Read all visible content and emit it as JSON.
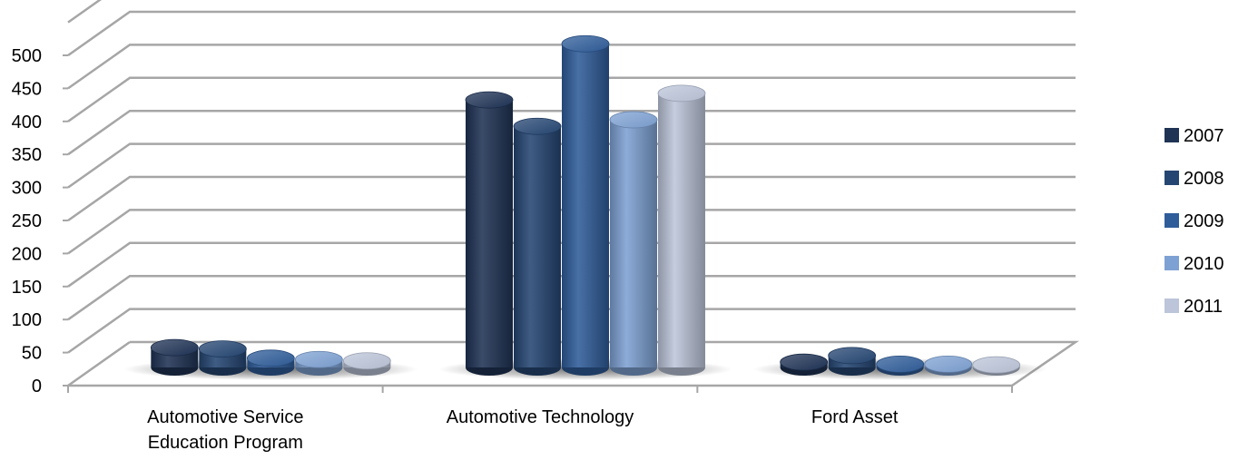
{
  "chart_data": {
    "type": "bar",
    "title": "",
    "xlabel": "",
    "ylabel": "",
    "ylim": [
      0,
      500
    ],
    "yticks": [
      "0",
      "50",
      "100",
      "150",
      "200",
      "250",
      "300",
      "350",
      "400",
      "450",
      "500"
    ],
    "grid": true,
    "legend_position": "right",
    "categories": [
      "Automotive Service Education Program",
      "Automotive Technology",
      "Ford Asset"
    ],
    "series": [
      {
        "name": "2007",
        "color": "#1f3355",
        "values": [
          30,
          405,
          8
        ]
      },
      {
        "name": "2008",
        "color": "#254673",
        "values": [
          28,
          365,
          18
        ]
      },
      {
        "name": "2009",
        "color": "#2f5d9a",
        "values": [
          14,
          490,
          5
        ]
      },
      {
        "name": "2010",
        "color": "#7ea1d3",
        "values": [
          12,
          375,
          5
        ]
      },
      {
        "name": "2011",
        "color": "#bcc5d9",
        "values": [
          10,
          415,
          4
        ]
      }
    ]
  }
}
